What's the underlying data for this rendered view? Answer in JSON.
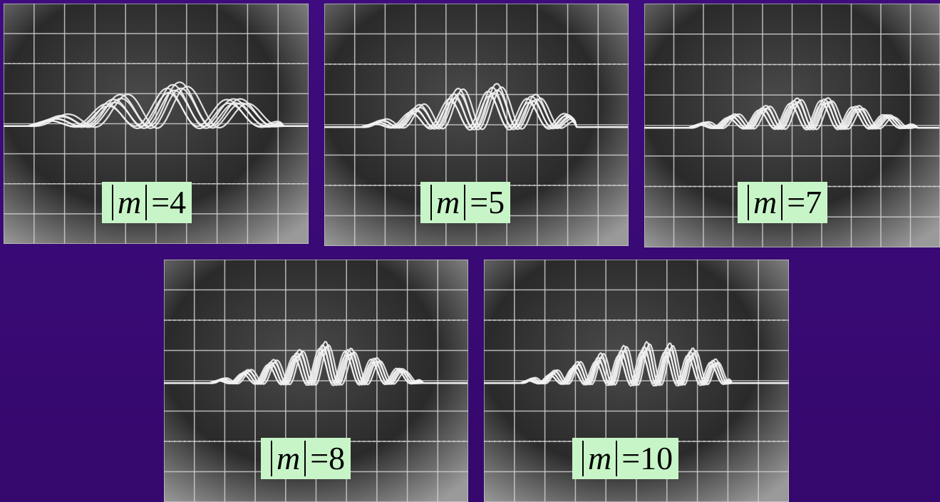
{
  "panels": [
    {
      "variable": "m",
      "equals": "=4"
    },
    {
      "variable": "m",
      "equals": "=5"
    },
    {
      "variable": "m",
      "equals": "=7"
    },
    {
      "variable": "m",
      "equals": "=8"
    },
    {
      "variable": "m",
      "equals": "=10"
    }
  ]
}
